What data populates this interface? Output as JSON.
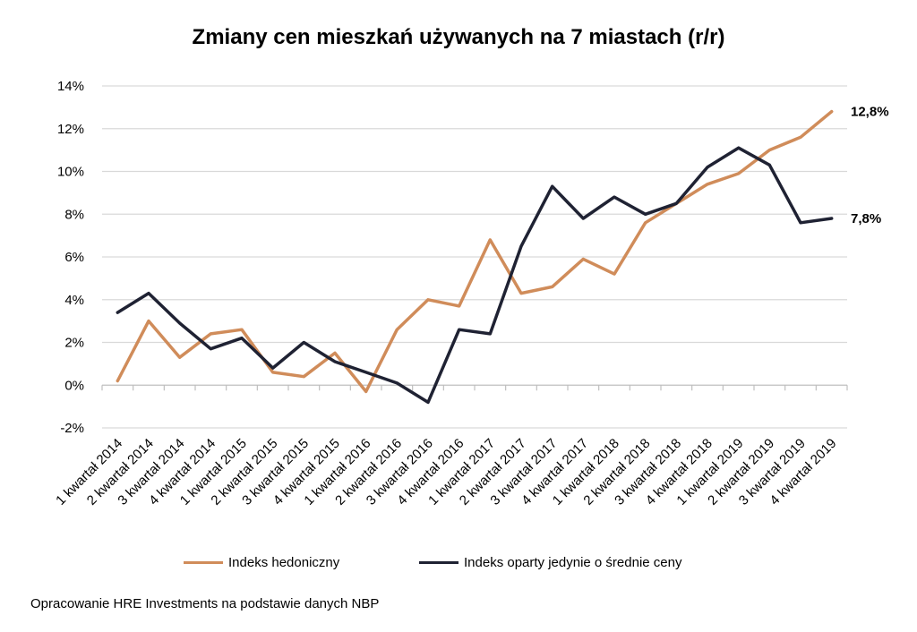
{
  "chart_data": {
    "type": "line",
    "title": "Zmiany cen mieszkań używanych na 7 miastach (r/r)",
    "xlabel": "",
    "ylabel": "",
    "ylim": [
      -2,
      14
    ],
    "yticks": [
      -2,
      0,
      2,
      4,
      6,
      8,
      10,
      12,
      14
    ],
    "ytick_labels": [
      "-2%",
      "0%",
      "2%",
      "4%",
      "6%",
      "8%",
      "10%",
      "12%",
      "14%"
    ],
    "grid": true,
    "legend_position": "bottom",
    "categories": [
      "1 kwartał 2014",
      "2 kwartał 2014",
      "3 kwartał 2014",
      "4 kwartał 2014",
      "1 kwartał 2015",
      "2 kwartał 2015",
      "3 kwartał 2015",
      "4 kwartał 2015",
      "1 kwartał 2016",
      "2 kwartał 2016",
      "3 kwartał 2016",
      "4 kwartał 2016",
      "1 kwartał 2017",
      "2 kwartał 2017",
      "3 kwartał 2017",
      "4 kwartał 2017",
      "1 kwartał 2018",
      "2 kwartał 2018",
      "3 kwartał 2018",
      "4 kwartał 2018",
      "1 kwartał 2019",
      "2 kwartał 2019",
      "3 kwartał 2019",
      "4 kwartał 2019"
    ],
    "series": [
      {
        "name": "Indeks hedoniczny",
        "color": "#D08C5A",
        "values": [
          0.2,
          3.0,
          1.3,
          2.4,
          2.6,
          0.6,
          0.4,
          1.5,
          -0.3,
          2.6,
          4.0,
          3.7,
          6.8,
          4.3,
          4.6,
          5.9,
          5.2,
          7.6,
          8.5,
          9.4,
          9.9,
          11.0,
          11.6,
          12.8
        ],
        "end_label": "12,8%"
      },
      {
        "name": "Indeks oparty jedynie o średnie ceny",
        "color": "#1F2233",
        "values": [
          3.4,
          4.3,
          2.9,
          1.7,
          2.2,
          0.8,
          2.0,
          1.1,
          0.6,
          0.1,
          -0.8,
          2.6,
          2.4,
          6.5,
          9.3,
          7.8,
          8.8,
          8.0,
          8.5,
          10.2,
          11.1,
          10.3,
          7.6,
          7.8
        ],
        "end_label": "7,8%"
      }
    ]
  },
  "footer": {
    "source": "Opracowanie HRE Investments na podstawie danych NBP"
  }
}
